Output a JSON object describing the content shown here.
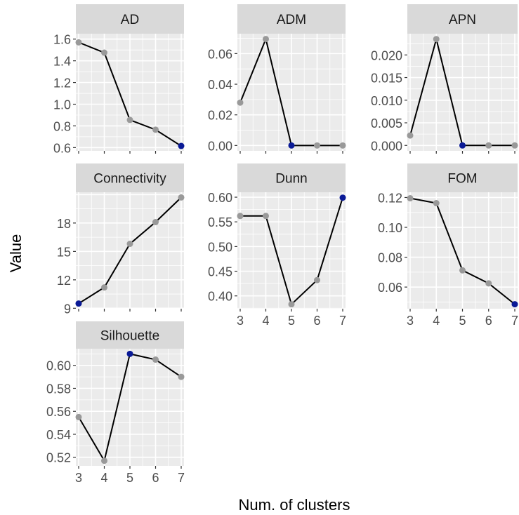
{
  "figure": {
    "ylabel": "Value",
    "xlabel": "Num. of clusters"
  },
  "colors": {
    "panel_bg": "#EBEBEB",
    "grid": "#FFFFFF",
    "strip_bg": "#D9D9D9",
    "line": "#000000",
    "point": "#999999",
    "optimal_point": "#0A1A96",
    "tick_text": "#4D4D4D",
    "title_text": "#1A1A1A"
  },
  "chart_data": [
    {
      "type": "line",
      "title": "AD",
      "x": [
        3,
        4,
        5,
        6,
        7
      ],
      "y": [
        1.57,
        1.475,
        0.855,
        0.765,
        0.615
      ],
      "optimal_index": 4,
      "ylim": [
        0.57,
        1.65
      ],
      "yticks": [
        0.6,
        0.8,
        1.0,
        1.2,
        1.4,
        1.6
      ],
      "ytick_labels": [
        "0.6",
        "0.8",
        "1.0",
        "1.2",
        "1.4",
        "1.6"
      ],
      "xlim": [
        3,
        7
      ],
      "xticks": [
        3,
        4,
        5,
        6,
        7
      ],
      "xtick_labels": [],
      "grid": true
    },
    {
      "type": "line",
      "title": "ADM",
      "x": [
        3,
        4,
        5,
        6,
        7
      ],
      "y": [
        0.028,
        0.0695,
        0.0,
        0.0,
        0.0
      ],
      "optimal_index": 2,
      "ylim": [
        -0.0035,
        0.073
      ],
      "yticks": [
        0.0,
        0.02,
        0.04,
        0.06
      ],
      "ytick_labels": [
        "0.00",
        "0.02",
        "0.04",
        "0.06"
      ],
      "xlim": [
        3,
        7
      ],
      "xticks": [
        3,
        4,
        5,
        6,
        7
      ],
      "xtick_labels": [],
      "grid": true
    },
    {
      "type": "line",
      "title": "APN",
      "x": [
        3,
        4,
        5,
        6,
        7
      ],
      "y": [
        0.0022,
        0.0235,
        0.0,
        0.0,
        0.0
      ],
      "optimal_index": 2,
      "ylim": [
        -0.0012,
        0.0247
      ],
      "yticks": [
        0.0,
        0.005,
        0.01,
        0.015,
        0.02
      ],
      "ytick_labels": [
        "0.000",
        "0.005",
        "0.010",
        "0.015",
        "0.020"
      ],
      "xlim": [
        3,
        7
      ],
      "xticks": [
        3,
        4,
        5,
        6,
        7
      ],
      "xtick_labels": [],
      "grid": true
    },
    {
      "type": "line",
      "title": "Connectivity",
      "x": [
        3,
        4,
        5,
        6,
        7
      ],
      "y": [
        9.5,
        11.2,
        15.8,
        18.1,
        20.7
      ],
      "optimal_index": 0,
      "ylim": [
        8.95,
        21.25
      ],
      "yticks": [
        9,
        12,
        15,
        18
      ],
      "ytick_labels": [
        "9",
        "12",
        "15",
        "18"
      ],
      "xlim": [
        3,
        7
      ],
      "xticks": [
        3,
        4,
        5,
        6,
        7
      ],
      "xtick_labels": [],
      "grid": true
    },
    {
      "type": "line",
      "title": "Dunn",
      "x": [
        3,
        4,
        5,
        6,
        7
      ],
      "y": [
        0.562,
        0.562,
        0.383,
        0.432,
        0.599
      ],
      "optimal_index": 4,
      "ylim": [
        0.374,
        0.61
      ],
      "yticks": [
        0.4,
        0.45,
        0.5,
        0.55,
        0.6
      ],
      "ytick_labels": [
        "0.40",
        "0.45",
        "0.50",
        "0.55",
        "0.60"
      ],
      "xlim": [
        3,
        7
      ],
      "xticks": [
        3,
        4,
        5,
        6,
        7
      ],
      "xtick_labels": [
        "3",
        "4",
        "5",
        "6",
        "7"
      ],
      "grid": true
    },
    {
      "type": "line",
      "title": "FOM",
      "x": [
        3,
        4,
        5,
        6,
        7
      ],
      "y": [
        0.1195,
        0.1162,
        0.0712,
        0.0625,
        0.0485
      ],
      "optimal_index": 4,
      "ylim": [
        0.0455,
        0.1235
      ],
      "yticks": [
        0.06,
        0.08,
        0.1,
        0.12
      ],
      "ytick_labels": [
        "0.06",
        "0.08",
        "0.10",
        "0.12"
      ],
      "xlim": [
        3,
        7
      ],
      "xticks": [
        3,
        4,
        5,
        6,
        7
      ],
      "xtick_labels": [
        "3",
        "4",
        "5",
        "6",
        "7"
      ],
      "grid": true
    },
    {
      "type": "line",
      "title": "Silhouette",
      "x": [
        3,
        4,
        5,
        6,
        7
      ],
      "y": [
        0.555,
        0.517,
        0.61,
        0.605,
        0.59
      ],
      "optimal_index": 2,
      "ylim": [
        0.5125,
        0.6145
      ],
      "yticks": [
        0.52,
        0.54,
        0.56,
        0.58,
        0.6
      ],
      "ytick_labels": [
        "0.52",
        "0.54",
        "0.56",
        "0.58",
        "0.60"
      ],
      "xlim": [
        3,
        7
      ],
      "xticks": [
        3,
        4,
        5,
        6,
        7
      ],
      "xtick_labels": [
        "3",
        "4",
        "5",
        "6",
        "7"
      ],
      "grid": true
    }
  ]
}
